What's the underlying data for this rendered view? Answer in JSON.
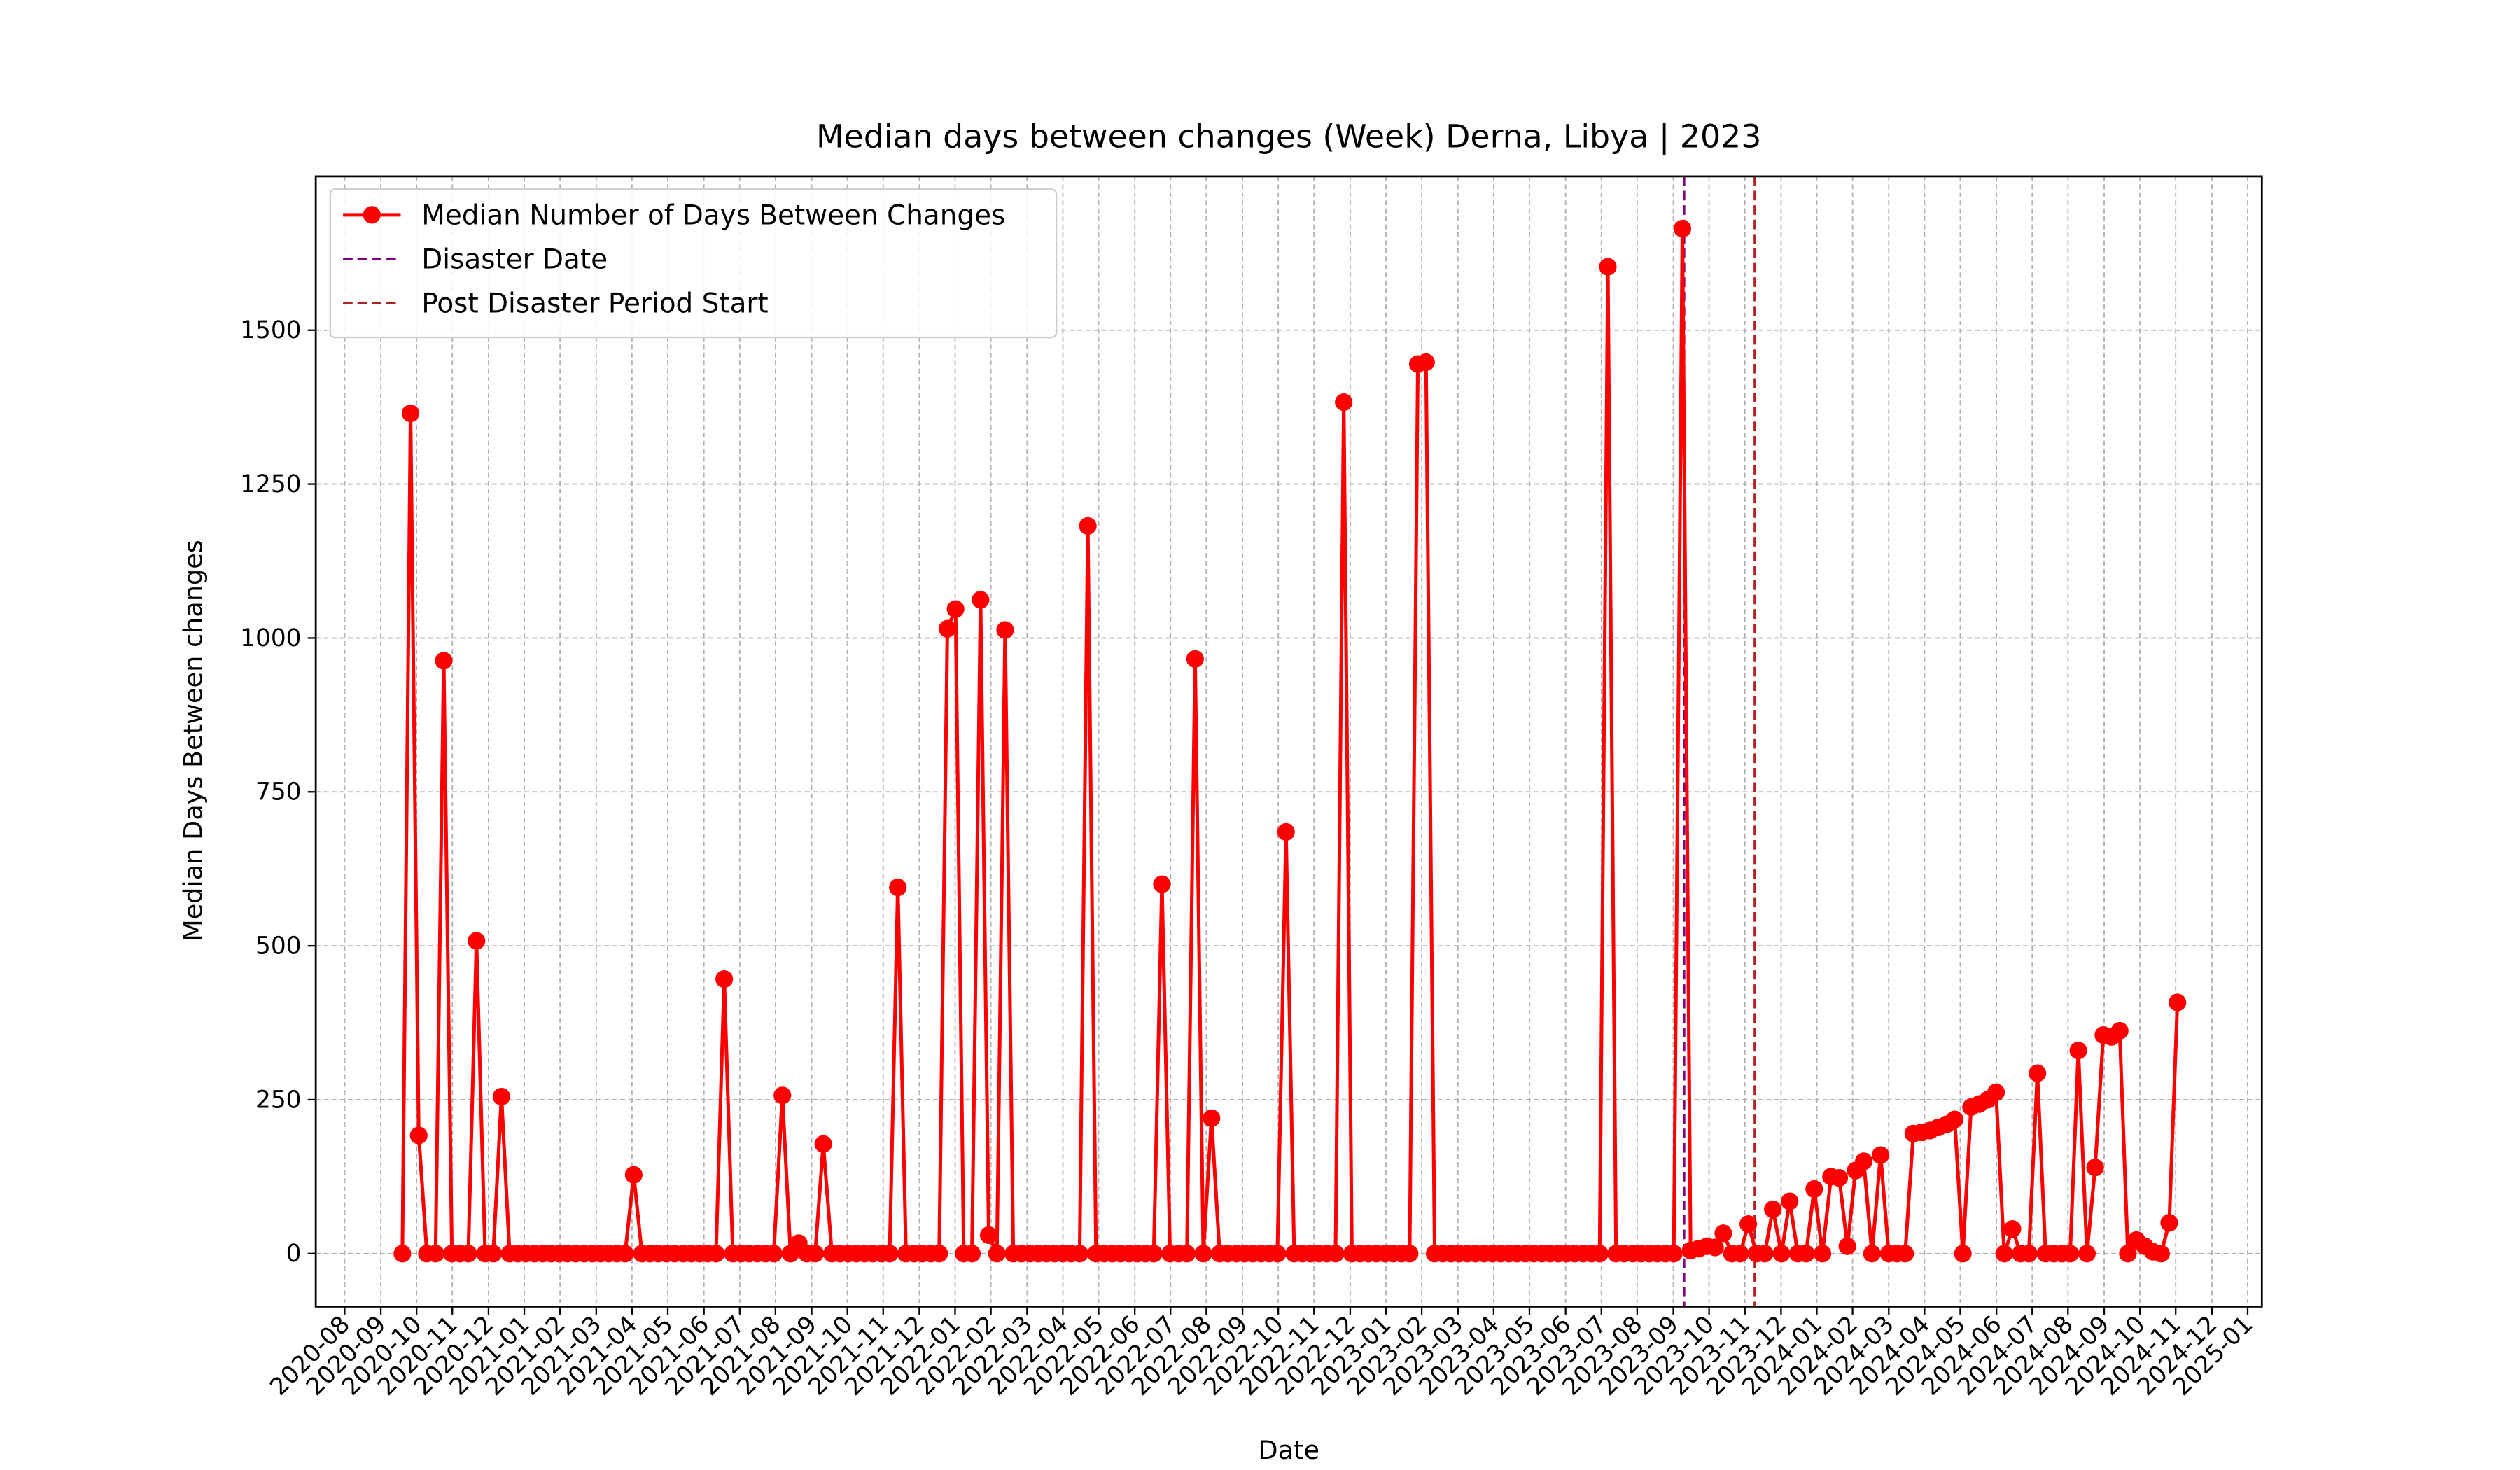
{
  "chart_data": {
    "type": "line",
    "title": "Median days between changes (Week) Derna, Libya | 2023",
    "xlabel": "Date",
    "ylabel": "Median Days Between changes",
    "x": [
      2020.717,
      2020.736,
      2020.755,
      2020.774,
      2020.794,
      2020.813,
      2020.832,
      2020.851,
      2020.87,
      2020.889,
      2020.909,
      2020.928,
      2020.947,
      2020.966,
      2020.985,
      2021.004,
      2021.024,
      2021.043,
      2021.062,
      2021.081,
      2021.1,
      2021.119,
      2021.139,
      2021.158,
      2021.177,
      2021.196,
      2021.215,
      2021.234,
      2021.254,
      2021.273,
      2021.292,
      2021.311,
      2021.33,
      2021.349,
      2021.369,
      2021.388,
      2021.407,
      2021.426,
      2021.445,
      2021.464,
      2021.484,
      2021.503,
      2021.522,
      2021.541,
      2021.56,
      2021.579,
      2021.599,
      2021.618,
      2021.637,
      2021.656,
      2021.675,
      2021.694,
      2021.714,
      2021.733,
      2021.752,
      2021.771,
      2021.79,
      2021.809,
      2021.829,
      2021.848,
      2021.867,
      2021.886,
      2021.905,
      2021.924,
      2021.944,
      2021.963,
      2021.982,
      2022.001,
      2022.02,
      2022.039,
      2022.059,
      2022.078,
      2022.097,
      2022.116,
      2022.135,
      2022.154,
      2022.174,
      2022.193,
      2022.212,
      2022.231,
      2022.25,
      2022.269,
      2022.289,
      2022.308,
      2022.327,
      2022.346,
      2022.365,
      2022.384,
      2022.404,
      2022.423,
      2022.442,
      2022.461,
      2022.48,
      2022.499,
      2022.519,
      2022.538,
      2022.557,
      2022.576,
      2022.595,
      2022.614,
      2022.633,
      2022.653,
      2022.672,
      2022.691,
      2022.71,
      2022.729,
      2022.748,
      2022.768,
      2022.787,
      2022.806,
      2022.825,
      2022.844,
      2022.863,
      2022.883,
      2022.902,
      2022.921,
      2022.94,
      2022.959,
      2022.978,
      2022.998,
      2023.017,
      2023.036,
      2023.055,
      2023.074,
      2023.093,
      2023.113,
      2023.132,
      2023.151,
      2023.17,
      2023.189,
      2023.208,
      2023.228,
      2023.247,
      2023.266,
      2023.285,
      2023.304,
      2023.323,
      2023.343,
      2023.362,
      2023.381,
      2023.4,
      2023.419,
      2023.438,
      2023.458,
      2023.477,
      2023.496,
      2023.515,
      2023.534,
      2023.553,
      2023.573,
      2023.592,
      2023.611,
      2023.63,
      2023.649,
      2023.668,
      2023.688,
      2023.707,
      2023.726,
      2023.745,
      2023.764,
      2023.783,
      2023.803,
      2023.822,
      2023.841,
      2023.86,
      2023.879,
      2023.898,
      2023.918,
      2023.937,
      2023.956,
      2023.975,
      2023.994,
      2024.013,
      2024.033,
      2024.052,
      2024.071,
      2024.09,
      2024.109,
      2024.128,
      2024.148,
      2024.167,
      2024.186,
      2024.205,
      2024.224,
      2024.243,
      2024.263,
      2024.282,
      2024.301,
      2024.32,
      2024.339,
      2024.358,
      2024.377,
      2024.397,
      2024.416,
      2024.435,
      2024.454,
      2024.473,
      2024.492,
      2024.512,
      2024.531,
      2024.55,
      2024.569,
      2024.588,
      2024.607,
      2024.627,
      2024.646,
      2024.665,
      2024.684,
      2024.703,
      2024.722,
      2024.742,
      2024.761,
      2024.78,
      2024.799,
      2024.818,
      2024.837
    ],
    "series": [
      {
        "name": "Median Number of Days Between Changes",
        "color": "#ff0000",
        "values": [
          0,
          1365,
          192,
          0,
          0,
          963,
          0,
          0,
          0,
          508,
          0,
          0,
          255,
          0,
          0,
          0,
          0,
          0,
          0,
          0,
          0,
          0,
          0,
          0,
          0,
          0,
          0,
          0,
          128,
          0,
          0,
          0,
          0,
          0,
          0,
          0,
          0,
          0,
          0,
          446,
          0,
          0,
          0,
          0,
          0,
          0,
          257,
          0,
          17,
          0,
          0,
          178,
          0,
          0,
          0,
          0,
          0,
          0,
          0,
          0,
          595,
          0,
          0,
          0,
          0,
          0,
          1015,
          1047,
          0,
          0,
          1062,
          30,
          0,
          1013,
          0,
          0,
          0,
          0,
          0,
          0,
          0,
          0,
          0,
          1182,
          0,
          0,
          0,
          0,
          0,
          0,
          0,
          0,
          600,
          0,
          0,
          0,
          966,
          0,
          220,
          0,
          0,
          0,
          0,
          0,
          0,
          0,
          0,
          685,
          0,
          0,
          0,
          0,
          0,
          0,
          1383,
          0,
          0,
          0,
          0,
          0,
          0,
          0,
          0,
          1445,
          1448,
          0,
          0,
          0,
          0,
          0,
          0,
          0,
          0,
          0,
          0,
          0,
          0,
          0,
          0,
          0,
          0,
          0,
          0,
          0,
          0,
          0,
          1603,
          0,
          0,
          0,
          0,
          0,
          0,
          0,
          0,
          1665,
          5,
          8,
          12,
          10,
          33,
          0,
          0,
          48,
          0,
          0,
          72,
          0,
          85,
          0,
          0,
          105,
          0,
          125,
          123,
          12,
          135,
          150,
          0,
          160,
          0,
          0,
          0,
          195,
          197,
          200,
          205,
          210,
          218,
          0,
          238,
          243,
          250,
          262,
          0,
          40,
          0,
          0,
          293,
          0,
          0,
          0,
          0,
          330,
          0,
          140,
          355,
          352,
          362,
          0,
          22,
          12,
          3,
          0,
          50,
          408
        ]
      }
    ],
    "vlines": [
      {
        "name": "Disaster Date",
        "x": 2023.692,
        "color": "#800080"
      },
      {
        "name": "Post Disaster Period Start",
        "x": 2023.856,
        "color": "#b22222"
      }
    ],
    "xlim": [
      2020.516,
      2025.033
    ],
    "ylim": [
      -86,
      1750
    ],
    "xticks": [
      {
        "value": 2020.583,
        "label": "2020-08"
      },
      {
        "value": 2020.667,
        "label": "2020-09"
      },
      {
        "value": 2020.75,
        "label": "2020-10"
      },
      {
        "value": 2020.833,
        "label": "2020-11"
      },
      {
        "value": 2020.917,
        "label": "2020-12"
      },
      {
        "value": 2021.0,
        "label": "2021-01"
      },
      {
        "value": 2021.083,
        "label": "2021-02"
      },
      {
        "value": 2021.167,
        "label": "2021-03"
      },
      {
        "value": 2021.25,
        "label": "2021-04"
      },
      {
        "value": 2021.333,
        "label": "2021-05"
      },
      {
        "value": 2021.417,
        "label": "2021-06"
      },
      {
        "value": 2021.5,
        "label": "2021-07"
      },
      {
        "value": 2021.583,
        "label": "2021-08"
      },
      {
        "value": 2021.667,
        "label": "2021-09"
      },
      {
        "value": 2021.75,
        "label": "2021-10"
      },
      {
        "value": 2021.833,
        "label": "2021-11"
      },
      {
        "value": 2021.917,
        "label": "2021-12"
      },
      {
        "value": 2022.0,
        "label": "2022-01"
      },
      {
        "value": 2022.083,
        "label": "2022-02"
      },
      {
        "value": 2022.167,
        "label": "2022-03"
      },
      {
        "value": 2022.25,
        "label": "2022-04"
      },
      {
        "value": 2022.333,
        "label": "2022-05"
      },
      {
        "value": 2022.417,
        "label": "2022-06"
      },
      {
        "value": 2022.5,
        "label": "2022-07"
      },
      {
        "value": 2022.583,
        "label": "2022-08"
      },
      {
        "value": 2022.667,
        "label": "2022-09"
      },
      {
        "value": 2022.75,
        "label": "2022-10"
      },
      {
        "value": 2022.833,
        "label": "2022-11"
      },
      {
        "value": 2022.917,
        "label": "2022-12"
      },
      {
        "value": 2023.0,
        "label": "2023-01"
      },
      {
        "value": 2023.083,
        "label": "2023-02"
      },
      {
        "value": 2023.167,
        "label": "2023-03"
      },
      {
        "value": 2023.25,
        "label": "2023-04"
      },
      {
        "value": 2023.333,
        "label": "2023-05"
      },
      {
        "value": 2023.417,
        "label": "2023-06"
      },
      {
        "value": 2023.5,
        "label": "2023-07"
      },
      {
        "value": 2023.583,
        "label": "2023-08"
      },
      {
        "value": 2023.667,
        "label": "2023-09"
      },
      {
        "value": 2023.75,
        "label": "2023-10"
      },
      {
        "value": 2023.833,
        "label": "2023-11"
      },
      {
        "value": 2023.917,
        "label": "2023-12"
      },
      {
        "value": 2024.0,
        "label": "2024-01"
      },
      {
        "value": 2024.083,
        "label": "2024-02"
      },
      {
        "value": 2024.167,
        "label": "2024-03"
      },
      {
        "value": 2024.25,
        "label": "2024-04"
      },
      {
        "value": 2024.333,
        "label": "2024-05"
      },
      {
        "value": 2024.417,
        "label": "2024-06"
      },
      {
        "value": 2024.5,
        "label": "2024-07"
      },
      {
        "value": 2024.583,
        "label": "2024-08"
      },
      {
        "value": 2024.667,
        "label": "2024-09"
      },
      {
        "value": 2024.75,
        "label": "2024-10"
      },
      {
        "value": 2024.833,
        "label": "2024-11"
      },
      {
        "value": 2024.917,
        "label": "2024-12"
      },
      {
        "value": 2025.0,
        "label": "2025-01"
      }
    ],
    "yticks": [
      0,
      250,
      500,
      750,
      1000,
      1250,
      1500
    ],
    "grid": true,
    "legend": "upper left"
  }
}
